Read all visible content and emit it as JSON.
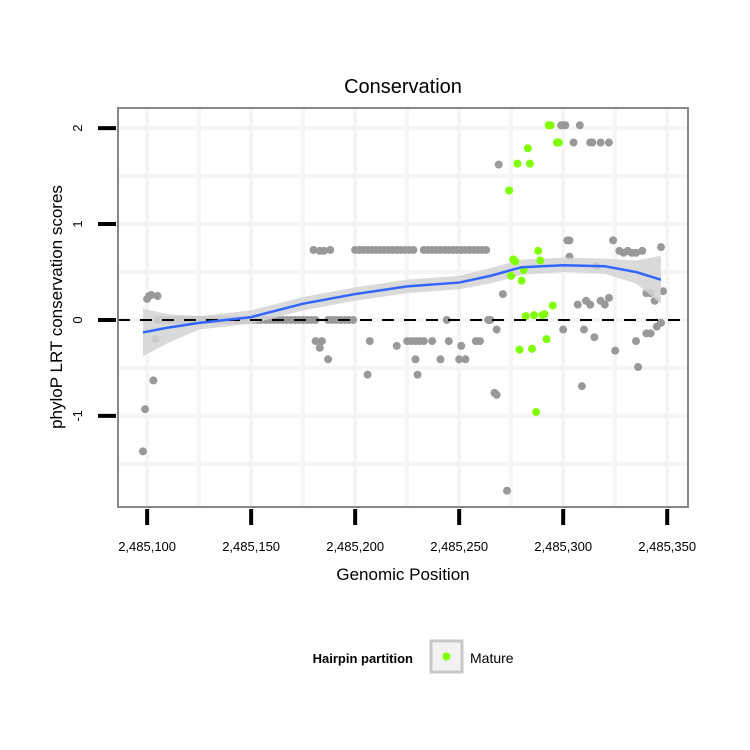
{
  "chart_data": {
    "type": "scatter",
    "title": "Conservation",
    "xlabel": "Genomic Position",
    "ylabel": "phyloP LRT conservation scores",
    "xlim": [
      2485086,
      2485360
    ],
    "ylim": [
      -1.95,
      2.21
    ],
    "x_ticks": [
      2485100,
      2485150,
      2485200,
      2485250,
      2485300,
      2485350
    ],
    "x_tick_labels": [
      "2,485,100",
      "2,485,150",
      "2,485,200",
      "2,485,250",
      "2,485,300",
      "2,485,350"
    ],
    "y_ticks": [
      -1,
      0,
      1,
      2
    ],
    "y_tick_labels": [
      "-1",
      "0",
      "1",
      "2"
    ],
    "grid": true,
    "reference_line": {
      "y": 0,
      "style": "dashed",
      "color": "#000000"
    },
    "legend": {
      "title": "Hairpin partition",
      "position": "bottom",
      "entries": [
        {
          "label": "Mature",
          "color": "#7FFF00"
        }
      ]
    },
    "colors": {
      "other": "#999999",
      "mature": "#7FFF00",
      "smooth": "#3366FF",
      "ribbon": "#D3D3D3"
    },
    "series": [
      {
        "name": "Other",
        "color": "#999999",
        "points": [
          [
            2485098,
            -1.37
          ],
          [
            2485099,
            -0.93
          ],
          [
            2485103,
            -0.63
          ],
          [
            2485104,
            -0.2
          ],
          [
            2485100,
            0.22
          ],
          [
            2485101,
            0.25
          ],
          [
            2485102,
            0.26
          ],
          [
            2485105,
            0.25
          ],
          [
            2485105,
            0
          ],
          [
            2485107,
            0
          ],
          [
            2485109,
            0
          ],
          [
            2485111,
            0
          ],
          [
            2485113,
            0
          ],
          [
            2485115,
            0
          ],
          [
            2485117,
            0
          ],
          [
            2485119,
            0
          ],
          [
            2485121,
            0
          ],
          [
            2485123,
            0
          ],
          [
            2485125,
            0
          ],
          [
            2485127,
            0
          ],
          [
            2485129,
            0
          ],
          [
            2485131,
            0
          ],
          [
            2485133,
            0
          ],
          [
            2485135,
            0
          ],
          [
            2485137,
            0
          ],
          [
            2485139,
            0
          ],
          [
            2485141,
            0
          ],
          [
            2485143,
            0
          ],
          [
            2485145,
            0
          ],
          [
            2485147,
            0
          ],
          [
            2485149,
            0
          ],
          [
            2485151,
            0
          ],
          [
            2485153,
            0
          ],
          [
            2485155,
            0
          ],
          [
            2485157,
            0
          ],
          [
            2485159,
            0
          ],
          [
            2485161,
            0
          ],
          [
            2485163,
            0
          ],
          [
            2485165,
            0
          ],
          [
            2485167,
            0
          ],
          [
            2485169,
            0
          ],
          [
            2485171,
            0
          ],
          [
            2485173,
            0
          ],
          [
            2485175,
            0
          ],
          [
            2485177,
            0
          ],
          [
            2485179,
            0
          ],
          [
            2485181,
            0
          ],
          [
            2485187,
            0
          ],
          [
            2485189,
            0
          ],
          [
            2485191,
            0
          ],
          [
            2485193,
            0
          ],
          [
            2485195,
            0
          ],
          [
            2485197,
            0
          ],
          [
            2485199,
            0
          ],
          [
            2485181,
            -0.22
          ],
          [
            2485184,
            -0.22
          ],
          [
            2485183,
            -0.29
          ],
          [
            2485187,
            -0.41
          ],
          [
            2485207,
            -0.22
          ],
          [
            2485206,
            -0.57
          ],
          [
            2485220,
            -0.27
          ],
          [
            2485180,
            0.73
          ],
          [
            2485183,
            0.72
          ],
          [
            2485185,
            0.72
          ],
          [
            2485188,
            0.73
          ],
          [
            2485200,
            0.73
          ],
          [
            2485202,
            0.73
          ],
          [
            2485204,
            0.73
          ],
          [
            2485206,
            0.73
          ],
          [
            2485208,
            0.73
          ],
          [
            2485210,
            0.73
          ],
          [
            2485212,
            0.73
          ],
          [
            2485214,
            0.73
          ],
          [
            2485216,
            0.73
          ],
          [
            2485218,
            0.73
          ],
          [
            2485220,
            0.73
          ],
          [
            2485222,
            0.73
          ],
          [
            2485224,
            0.73
          ],
          [
            2485226,
            0.73
          ],
          [
            2485228,
            0.73
          ],
          [
            2485233,
            0.73
          ],
          [
            2485235,
            0.73
          ],
          [
            2485237,
            0.73
          ],
          [
            2485239,
            0.73
          ],
          [
            2485241,
            0.73
          ],
          [
            2485243,
            0.73
          ],
          [
            2485245,
            0.73
          ],
          [
            2485247,
            0.73
          ],
          [
            2485249,
            0.73
          ],
          [
            2485251,
            0.73
          ],
          [
            2485253,
            0.73
          ],
          [
            2485255,
            0.73
          ],
          [
            2485257,
            0.73
          ],
          [
            2485259,
            0.73
          ],
          [
            2485261,
            0.73
          ],
          [
            2485263,
            0.73
          ],
          [
            2485225,
            -0.22
          ],
          [
            2485227,
            -0.22
          ],
          [
            2485229,
            -0.22
          ],
          [
            2485231,
            -0.22
          ],
          [
            2485233,
            -0.22
          ],
          [
            2485237,
            -0.22
          ],
          [
            2485245,
            -0.22
          ],
          [
            2485251,
            -0.27
          ],
          [
            2485258,
            -0.22
          ],
          [
            2485260,
            -0.22
          ],
          [
            2485229,
            -0.41
          ],
          [
            2485241,
            -0.41
          ],
          [
            2485250,
            -0.41
          ],
          [
            2485253,
            -0.41
          ],
          [
            2485230,
            -0.57
          ],
          [
            2485244,
            0
          ],
          [
            2485264,
            0
          ],
          [
            2485265,
            0
          ],
          [
            2485268,
            -0.1
          ],
          [
            2485267,
            -0.76
          ],
          [
            2485268,
            -0.78
          ],
          [
            2485273,
            -1.78
          ],
          [
            2485269,
            1.62
          ],
          [
            2485271,
            0.27
          ],
          [
            2485299,
            2.03
          ],
          [
            2485300,
            2.03
          ],
          [
            2485301,
            2.03
          ],
          [
            2485308,
            2.03
          ],
          [
            2485305,
            1.85
          ],
          [
            2485313,
            1.85
          ],
          [
            2485314,
            1.85
          ],
          [
            2485318,
            1.85
          ],
          [
            2485322,
            1.85
          ],
          [
            2485302,
            0.83
          ],
          [
            2485303,
            0.83
          ],
          [
            2485303,
            0.66
          ],
          [
            2485324,
            0.83
          ],
          [
            2485327,
            0.72
          ],
          [
            2485329,
            0.7
          ],
          [
            2485331,
            0.72
          ],
          [
            2485333,
            0.7
          ],
          [
            2485335,
            0.7
          ],
          [
            2485338,
            0.72
          ],
          [
            2485347,
            0.76
          ],
          [
            2485316,
            0.56
          ],
          [
            2485340,
            0.28
          ],
          [
            2485342,
            0.28
          ],
          [
            2485344,
            0.2
          ],
          [
            2485348,
            0.3
          ],
          [
            2485307,
            0.16
          ],
          [
            2485311,
            0.2
          ],
          [
            2485313,
            0.16
          ],
          [
            2485318,
            0.2
          ],
          [
            2485320,
            0.16
          ],
          [
            2485322,
            0.23
          ],
          [
            2485300,
            -0.1
          ],
          [
            2485310,
            -0.1
          ],
          [
            2485315,
            -0.18
          ],
          [
            2485325,
            -0.32
          ],
          [
            2485335,
            -0.22
          ],
          [
            2485340,
            -0.14
          ],
          [
            2485342,
            -0.14
          ],
          [
            2485345,
            -0.07
          ],
          [
            2485347,
            -0.03
          ],
          [
            2485336,
            -0.49
          ],
          [
            2485309,
            -0.69
          ]
        ]
      },
      {
        "name": "Mature",
        "color": "#7FFF00",
        "points": [
          [
            2485293,
            2.03
          ],
          [
            2485294,
            2.03
          ],
          [
            2485297,
            1.85
          ],
          [
            2485298,
            1.85
          ],
          [
            2485283,
            1.79
          ],
          [
            2485278,
            1.63
          ],
          [
            2485284,
            1.63
          ],
          [
            2485274,
            1.35
          ],
          [
            2485276,
            0.63
          ],
          [
            2485277,
            0.61
          ],
          [
            2485288,
            0.72
          ],
          [
            2485289,
            0.62
          ],
          [
            2485281,
            0.52
          ],
          [
            2485275,
            0.46
          ],
          [
            2485280,
            0.41
          ],
          [
            2485295,
            0.15
          ],
          [
            2485282,
            0.04
          ],
          [
            2485286,
            0.05
          ],
          [
            2485290,
            0.05
          ],
          [
            2485291,
            0.06
          ],
          [
            2485292,
            -0.2
          ],
          [
            2485279,
            -0.31
          ],
          [
            2485285,
            -0.3
          ],
          [
            2485287,
            -0.96
          ]
        ]
      }
    ],
    "smooth": {
      "x": [
        2485098,
        2485110,
        2485125,
        2485150,
        2485175,
        2485200,
        2485225,
        2485250,
        2485265,
        2485280,
        2485300,
        2485320,
        2485335,
        2485347
      ],
      "y": [
        -0.13,
        -0.08,
        -0.03,
        0.03,
        0.17,
        0.27,
        0.35,
        0.39,
        0.46,
        0.55,
        0.57,
        0.56,
        0.5,
        0.42
      ],
      "lo": [
        -0.38,
        -0.24,
        -0.1,
        -0.04,
        0.1,
        0.2,
        0.28,
        0.32,
        0.38,
        0.47,
        0.5,
        0.48,
        0.38,
        0.17
      ],
      "hi": [
        0.12,
        0.06,
        0.04,
        0.1,
        0.24,
        0.34,
        0.42,
        0.46,
        0.54,
        0.63,
        0.65,
        0.64,
        0.62,
        0.67
      ]
    }
  }
}
